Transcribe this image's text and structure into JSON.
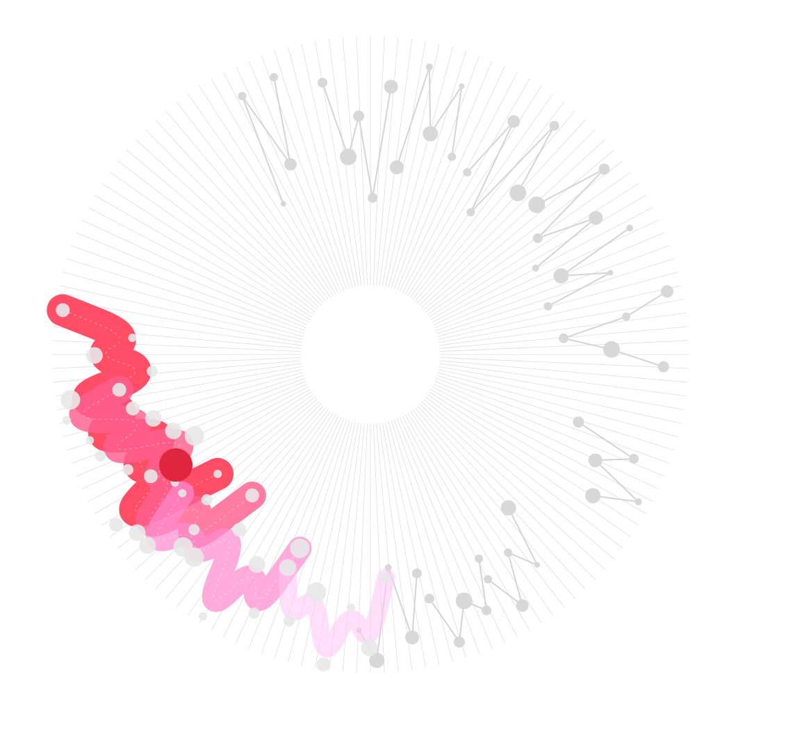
{
  "chart_data": {
    "type": "radial-line",
    "title": "",
    "spoke_count": 144,
    "grid": true,
    "colors": {
      "spoke": "#dddddd",
      "background_track": "#d4d4d4",
      "background_dot": "#d8d8d8",
      "ribbon_gradient": [
        "#ff3b55",
        "#ff5f8f",
        "#ff8ccf",
        "#ffc4f6"
      ],
      "highlight_dot": "#e0253f",
      "ribbon_dot": "#e8e8e8"
    },
    "background_series": [
      {
        "values": [
          0.42,
          0.88,
          0.55,
          0.9
        ]
      },
      {
        "values": [
          0.83,
          0.52,
          0.68,
          0.35,
          0.8
        ]
      },
      {
        "values": [
          0.48,
          0.9,
          0.64,
          0.86,
          0.58
        ]
      },
      {
        "values": [
          0.55,
          0.82,
          0.42,
          0.9,
          0.6
        ]
      },
      {
        "values": [
          0.62,
          0.92,
          0.54,
          0.78,
          0.47
        ]
      },
      {
        "values": [
          0.88,
          0.55,
          0.74,
          0.46
        ]
      },
      {
        "values": [
          0.94,
          0.76,
          0.5,
          0.69,
          0.9
        ]
      },
      {
        "values": [
          0.6,
          0.86,
          0.72,
          0.95,
          0.78
        ]
      },
      {
        "values": [
          0.55,
          0.8,
          0.69,
          0.9,
          0.74
        ]
      },
      {
        "values": [
          0.65,
          0.85,
          0.78,
          0.93,
          0.73
        ]
      },
      {
        "values": [
          0.62,
          0.87,
          0.58,
          0.95,
          0.83
        ]
      }
    ],
    "highlight_series": [
      {
        "values": [
          0.5,
          0.95,
          0.62,
          0.8,
          0.57,
          0.9,
          0.7,
          0.94,
          0.6,
          0.83,
          0.68,
          0.97
        ]
      },
      {
        "values": [
          0.46,
          0.8,
          0.6,
          0.9,
          0.66,
          0.73,
          0.5,
          0.88,
          0.63,
          0.97,
          0.74
        ]
      },
      {
        "values": [
          0.55,
          0.86,
          0.68,
          0.97,
          0.6,
          0.8,
          0.72,
          0.9,
          0.66
        ]
      },
      {
        "values": [
          0.62,
          0.9,
          0.74,
          0.98,
          0.7,
          0.84,
          0.64
        ]
      }
    ]
  }
}
